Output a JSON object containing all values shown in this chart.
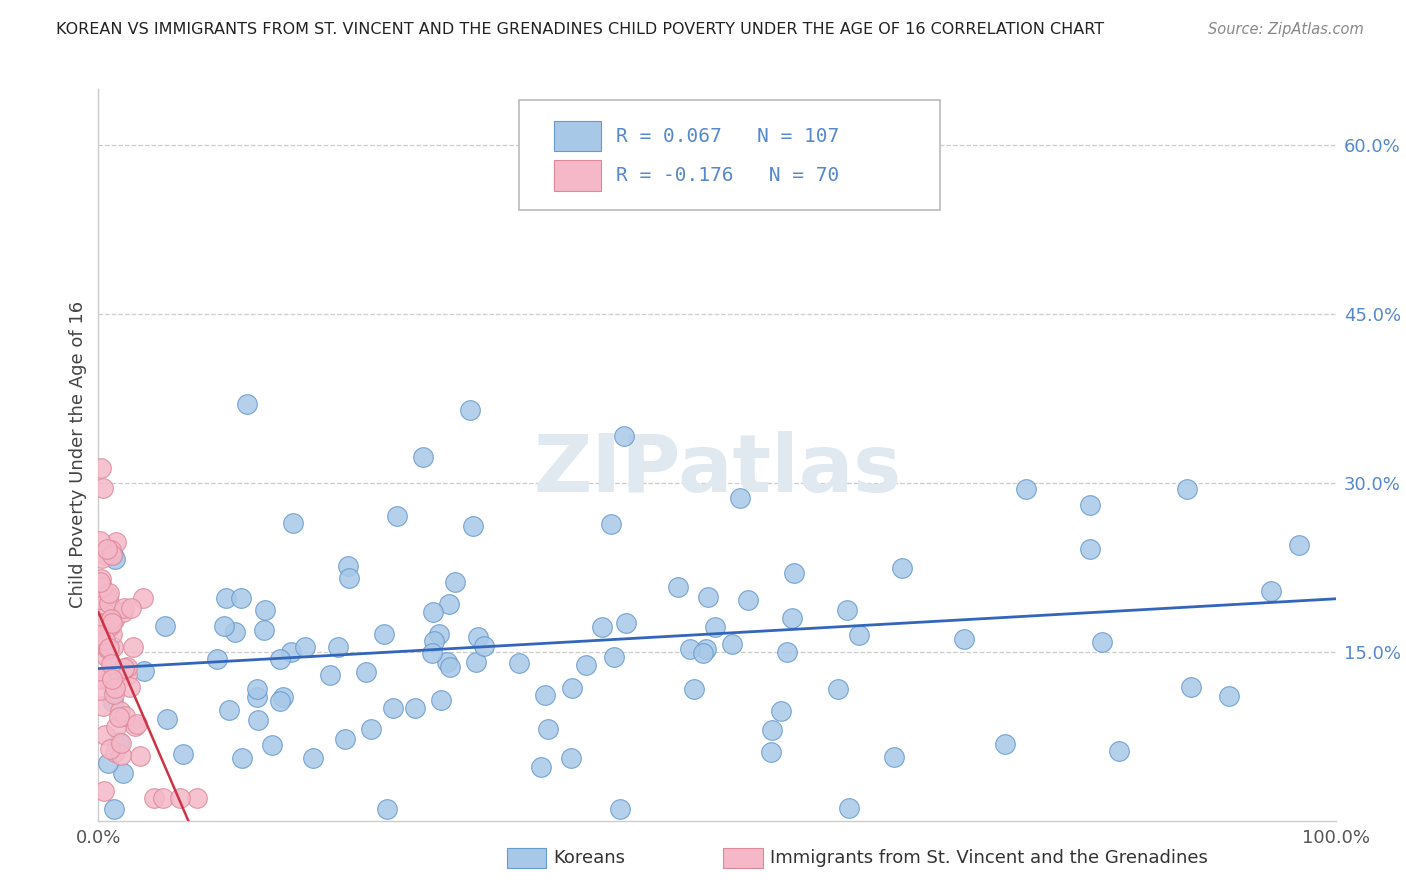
{
  "title": "KOREAN VS IMMIGRANTS FROM ST. VINCENT AND THE GRENADINES CHILD POVERTY UNDER THE AGE OF 16 CORRELATION CHART",
  "source": "Source: ZipAtlas.com",
  "ylabel": "Child Poverty Under the Age of 16",
  "R1": 0.067,
  "N1": 107,
  "R2": -0.176,
  "N2": 70,
  "legend_label1": "Koreans",
  "legend_label2": "Immigrants from St. Vincent and the Grenadines",
  "xlim": [
    0.0,
    1.0
  ],
  "ylim": [
    0.0,
    0.65
  ],
  "ytick_positions": [
    0.15,
    0.3,
    0.45,
    0.6
  ],
  "ytick_labels": [
    "15.0%",
    "30.0%",
    "45.0%",
    "60.0%"
  ],
  "blue_color": "#a8c8e8",
  "blue_edge": "#6699cc",
  "pink_color": "#f4b8c8",
  "pink_edge": "#dd8899",
  "blue_line_color": "#3366bb",
  "pink_line_color": "#cc3344",
  "pink_line_dash": [
    6,
    4
  ],
  "background_color": "#ffffff",
  "grid_color": "#cccccc",
  "watermark_color": "#e0e8f0",
  "title_color": "#222222",
  "source_color": "#888888",
  "axis_label_color": "#444444",
  "tick_color": "#555555",
  "right_tick_color": "#5588cc"
}
